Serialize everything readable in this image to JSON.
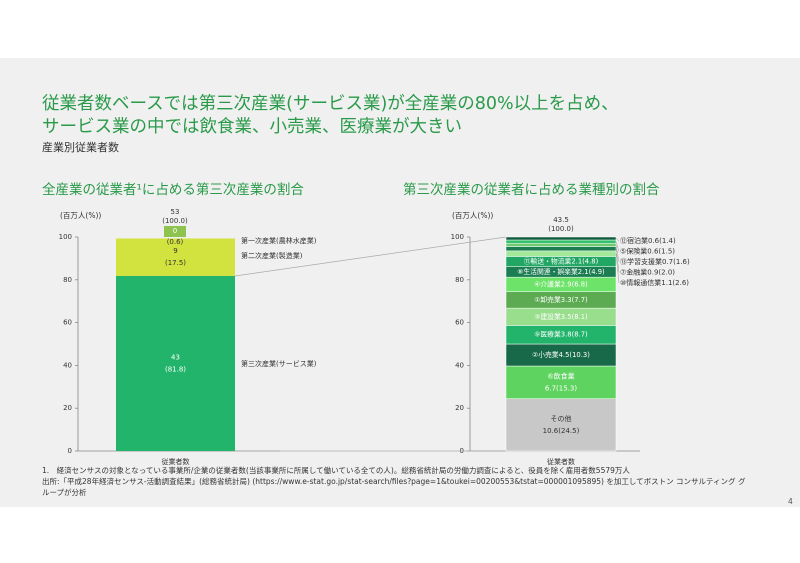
{
  "slide": {
    "title_line1": "従業者数ベースでは第三次産業(サービス業)が全産業の80%以上を占め、",
    "title_line2": "サービス業の中では飲食業、小売業、医療業が大きい",
    "subtitle": "産業別従業者数",
    "left_heading": "全産業の従業者¹に占める第三次産業の割合",
    "right_heading": "第三次産業の従業者に占める業種別の割合",
    "footnote_line1": "1.　経済センサスの対象となっている事業所/企業の従業者数(当該事業所に所属して働いている全ての人)。総務省統計局の労働力調査によると、役員を除く雇用者数5579万人",
    "footnote_line2": "出所:「平成28年経済センサス-活動調査結果」(総務省統計局) (https://www.e-stat.go.jp/stat-search/files?page=1&toukei=00200553&tstat=000001095895) を加工してボストン コンサルティング グループが分析",
    "page_number": "4"
  },
  "chart_data": [
    {
      "type": "bar",
      "stacked": true,
      "ylabel": "(百万人(%))",
      "ylim": [
        0,
        100
      ],
      "yticks": [
        0,
        20,
        40,
        60,
        80,
        100
      ],
      "category": "従業者数",
      "total_label": "53",
      "total_pct_label": "(100.0)",
      "segments": [
        {
          "name": "第三次産業(サービス業)",
          "value": 81.8,
          "label": "43",
          "pct_label": "(81.8)",
          "color": "#23b46b"
        },
        {
          "name": "第二次産業(製造業)",
          "value": 17.5,
          "label": "9",
          "pct_label": "(17.5)",
          "color": "#d2e23e"
        },
        {
          "name": "第一次産業(農林水産業)",
          "value": 0.6,
          "label": "0",
          "pct_label": "(0.6)",
          "color": "#8fc34f"
        }
      ]
    },
    {
      "type": "bar",
      "stacked": true,
      "ylabel": "(百万人(%))",
      "ylim": [
        0,
        100
      ],
      "yticks": [
        0,
        20,
        40,
        60,
        80,
        100
      ],
      "category": "従業者数",
      "total_label": "43.5",
      "total_pct_label": "(100.0)",
      "segments": [
        {
          "name": "その他",
          "value": 24.5,
          "label": "その他",
          "label2": "10.6(24.5)",
          "color": "#c8c8c8",
          "text_color": "#333333"
        },
        {
          "name": "⑥飲食業",
          "value": 15.3,
          "label": "⑥飲食業",
          "label2": "6.7(15.3)",
          "color": "#5fd35f",
          "text_color": "#ffffff"
        },
        {
          "name": "②小売業",
          "value": 10.3,
          "label": "②小売業4.5(10.3)",
          "color": "#17694a",
          "text_color": "#ffffff"
        },
        {
          "name": "⑨医療業",
          "value": 8.7,
          "label": "⑨医療業3.8(8.7)",
          "color": "#23b46b",
          "text_color": "#ffffff"
        },
        {
          "name": "③建設業",
          "value": 8.1,
          "label": "③建設業3.5(8.1)",
          "color": "#98de8c",
          "text_color": "#ffffff"
        },
        {
          "name": "①卸売業",
          "value": 7.7,
          "label": "①卸売業3.3(7.7)",
          "color": "#5cab52",
          "text_color": "#ffffff"
        },
        {
          "name": "④介護業",
          "value": 6.8,
          "label": "④介護業2.9(6.8)",
          "color": "#6ee36a",
          "text_color": "#ffffff"
        },
        {
          "name": "⑧生活関連・娯楽業",
          "value": 4.9,
          "label": "⑧生活関連・娯楽業2.1(4.9)",
          "color": "#1c7d53",
          "text_color": "#ffffff"
        },
        {
          "name": "⑪輸送・物流業",
          "value": 4.8,
          "label": "⑪輸送・物流業2.1(4.8)",
          "color": "#22a664",
          "text_color": "#ffffff"
        },
        {
          "name": "⑩情報通信業",
          "value": 2.6,
          "label": "⑩情報通信業1.1(2.6)",
          "color": "#a2e79a",
          "outside": true
        },
        {
          "name": "⑦金融業",
          "value": 2.0,
          "label": "⑦金融業0.9(2.0)",
          "color": "#1a7e50",
          "outside": true
        },
        {
          "name": "⑬学習支援業",
          "value": 1.6,
          "label": "⑬学習支援業0.7(1.6)",
          "color": "#6fc872",
          "outside": true
        },
        {
          "name": "⑤保険業",
          "value": 1.5,
          "label": "⑤保険業0.6(1.5)",
          "color": "#2fbf68",
          "outside": true
        },
        {
          "name": "⑫宿泊業",
          "value": 1.4,
          "label": "⑫宿泊業0.6(1.4)",
          "color": "#0f5c3d",
          "outside": true
        }
      ]
    }
  ]
}
